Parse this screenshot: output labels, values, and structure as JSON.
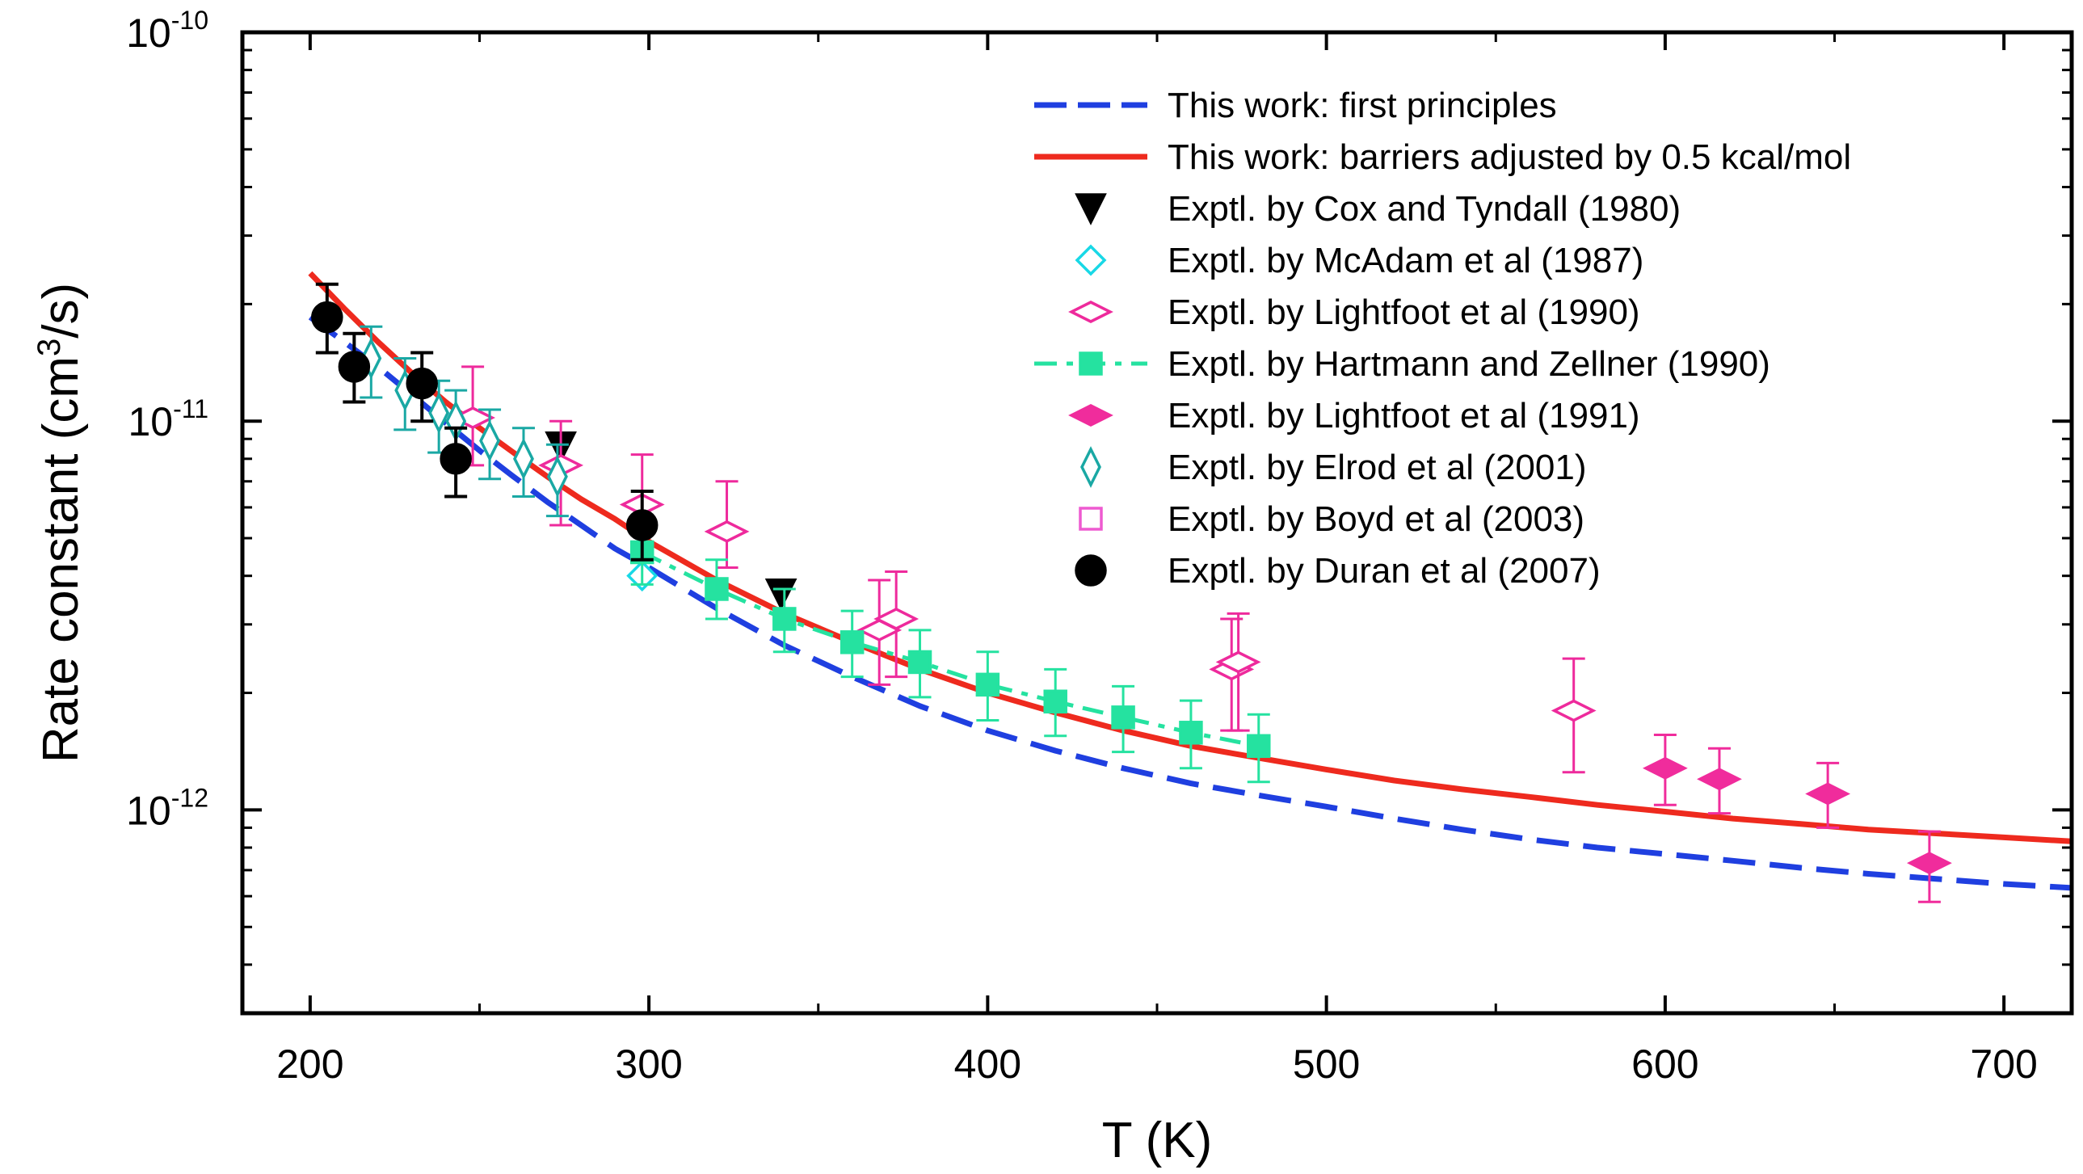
{
  "chart_data": {
    "type": "line",
    "title": "",
    "xlabel": "T (K)",
    "ylabel": "Rate constant (cm3/s)",
    "ylabel_parts": {
      "main": "Rate constant (cm",
      "sup": "3",
      "tail": "/s)"
    },
    "xlim": [
      180,
      720
    ],
    "ylim": [
      3e-13,
      1e-10
    ],
    "yscale": "log",
    "x_ticks": [
      200,
      300,
      400,
      500,
      600,
      700
    ],
    "y_ticks": [
      {
        "value": 1e-10,
        "base": "10",
        "exp": "-10"
      },
      {
        "value": 1e-11,
        "base": "10",
        "exp": "-11"
      },
      {
        "value": 1e-12,
        "base": "10",
        "exp": "-12"
      }
    ],
    "legend_position": "top-right",
    "series": [
      {
        "name": "This work: first principles",
        "kind": "line",
        "style": "dashed",
        "color": "#1f3fe0",
        "x": [
          200,
          210,
          220,
          230,
          240,
          250,
          260,
          270,
          280,
          290,
          300,
          320,
          340,
          360,
          380,
          400,
          420,
          440,
          460,
          480,
          500,
          520,
          540,
          560,
          580,
          600,
          620,
          640,
          660,
          680,
          700,
          720
        ],
        "y": [
          1.85e-11,
          1.6e-11,
          1.38e-11,
          1.17e-11,
          9.9e-12,
          8.4e-12,
          7.2e-12,
          6.2e-12,
          5.4e-12,
          4.7e-12,
          4.2e-12,
          3.3e-12,
          2.65e-12,
          2.2e-12,
          1.85e-12,
          1.6e-12,
          1.42e-12,
          1.28e-12,
          1.17e-12,
          1.09e-12,
          1.02e-12,
          9.5e-13,
          8.9e-13,
          8.4e-13,
          8e-13,
          7.7e-13,
          7.4e-13,
          7.1e-13,
          6.85e-13,
          6.65e-13,
          6.45e-13,
          6.3e-13
        ]
      },
      {
        "name": "This work: barriers adjusted by 0.5 kcal/mol",
        "kind": "line",
        "style": "solid",
        "color": "#ee2a1e",
        "x": [
          200,
          210,
          220,
          230,
          240,
          250,
          260,
          270,
          280,
          290,
          300,
          320,
          340,
          360,
          380,
          400,
          420,
          440,
          460,
          480,
          500,
          520,
          540,
          560,
          580,
          600,
          620,
          640,
          660,
          680,
          700,
          720
        ],
        "y": [
          2.4e-11,
          1.95e-11,
          1.6e-11,
          1.33e-11,
          1.12e-11,
          9.6e-12,
          8.3e-12,
          7.2e-12,
          6.3e-12,
          5.6e-12,
          4.9e-12,
          3.9e-12,
          3.2e-12,
          2.7e-12,
          2.3e-12,
          2e-12,
          1.78e-12,
          1.6e-12,
          1.46e-12,
          1.36e-12,
          1.27e-12,
          1.19e-12,
          1.13e-12,
          1.08e-12,
          1.03e-12,
          9.9e-13,
          9.5e-13,
          9.2e-13,
          8.9e-13,
          8.7e-13,
          8.5e-13,
          8.3e-13
        ]
      },
      {
        "name": "Exptl. by Cox and Tyndall (1980)",
        "kind": "points",
        "marker": "triangle-down",
        "color": "#000000",
        "filled": true,
        "x": [
          274,
          339
        ],
        "y": [
          8.6e-12,
          3.6e-12
        ],
        "err": [
          [
            0,
            0
          ],
          [
            0,
            0
          ]
        ]
      },
      {
        "name": "Exptl. by McAdam et al (1987)",
        "kind": "points",
        "marker": "diamond",
        "color": "#18d8e6",
        "filled": false,
        "x": [
          298
        ],
        "y": [
          4e-12
        ],
        "err": [
          [
            0,
            0
          ]
        ]
      },
      {
        "name": "Exptl. by Lightfoot et al (1990)",
        "kind": "points",
        "marker": "diamond-wide",
        "color": "#ee2a9c",
        "filled": false,
        "x": [
          248,
          274,
          298,
          323,
          368,
          373,
          472,
          474,
          573
        ],
        "y": [
          1.02e-11,
          7.7e-12,
          6.1e-12,
          5.2e-12,
          2.9e-12,
          3.1e-12,
          2.3e-12,
          2.4e-12,
          1.8e-12
        ],
        "err": [
          [
            2.5e-12,
            3.6e-12
          ],
          [
            2.3e-12,
            2.3e-12
          ],
          [
            1.5e-12,
            2.1e-12
          ],
          [
            1e-12,
            1.8e-12
          ],
          [
            8e-13,
            1e-12
          ],
          [
            9e-13,
            1e-12
          ],
          [
            7e-13,
            8e-13
          ],
          [
            8e-13,
            8e-13
          ],
          [
            5.5e-13,
            6.5e-13
          ]
        ]
      },
      {
        "name": "Exptl. by Hartmann and Zellner (1990)",
        "kind": "line-points",
        "style": "dashdot",
        "marker": "square",
        "color": "#25e2a0",
        "filled": true,
        "x": [
          298,
          320,
          340,
          360,
          380,
          400,
          420,
          440,
          460,
          480
        ],
        "y": [
          4.6e-12,
          3.7e-12,
          3.1e-12,
          2.7e-12,
          2.4e-12,
          2.1e-12,
          1.9e-12,
          1.73e-12,
          1.58e-12,
          1.46e-12
        ],
        "err": [
          [
            8e-13,
            9e-13
          ],
          [
            6e-13,
            7e-13
          ],
          [
            5.5e-13,
            6e-13
          ],
          [
            5e-13,
            5.5e-13
          ],
          [
            4.5e-13,
            5e-13
          ],
          [
            4e-13,
            4.5e-13
          ],
          [
            3.5e-13,
            4e-13
          ],
          [
            3.2e-13,
            3.5e-13
          ],
          [
            3e-13,
            3.3e-13
          ],
          [
            2.8e-13,
            3e-13
          ]
        ]
      },
      {
        "name": "Exptl. by Lightfoot et al (1991)",
        "kind": "points",
        "marker": "diamond-wide",
        "color": "#f02c9c",
        "filled": true,
        "x": [
          600,
          616,
          648,
          678
        ],
        "y": [
          1.28e-12,
          1.2e-12,
          1.1e-12,
          7.3e-13
        ],
        "err": [
          [
            2.5e-13,
            2.8e-13
          ],
          [
            2.2e-13,
            2.4e-13
          ],
          [
            2e-13,
            2.2e-13
          ],
          [
            1.5e-13,
            1.5e-13
          ]
        ]
      },
      {
        "name": "Exptl. by Elrod et al (2001)",
        "kind": "points",
        "marker": "diamond-tall",
        "color": "#1aa8a4",
        "filled": false,
        "x": [
          218,
          228,
          238,
          243,
          253,
          263,
          273
        ],
        "y": [
          1.45e-11,
          1.2e-11,
          1.05e-11,
          1e-11,
          8.9e-12,
          8e-12,
          7.2e-12
        ],
        "err": [
          [
            3e-12,
            3e-12
          ],
          [
            2.5e-12,
            2.5e-12
          ],
          [
            2.2e-12,
            2.2e-12
          ],
          [
            2e-12,
            2e-12
          ],
          [
            1.8e-12,
            1.8e-12
          ],
          [
            1.6e-12,
            1.6e-12
          ],
          [
            1.5e-12,
            1.5e-12
          ]
        ]
      },
      {
        "name": "Exptl. by Boyd et al (2003)",
        "kind": "points",
        "marker": "square-open",
        "color": "#ee5ad0",
        "filled": false,
        "x": [],
        "y": [],
        "err": []
      },
      {
        "name": "Exptl. by Duran et al (2007)",
        "kind": "points",
        "marker": "circle",
        "color": "#000000",
        "filled": true,
        "x": [
          205,
          213,
          233,
          243,
          298
        ],
        "y": [
          1.85e-11,
          1.38e-11,
          1.25e-11,
          8e-12,
          5.4e-12
        ],
        "err": [
          [
            3.5e-12,
            4e-12
          ],
          [
            2.6e-12,
            3e-12
          ],
          [
            2.5e-12,
            2.5e-12
          ],
          [
            1.6e-12,
            1.6e-12
          ],
          [
            1e-12,
            1.2e-12
          ]
        ]
      }
    ]
  }
}
